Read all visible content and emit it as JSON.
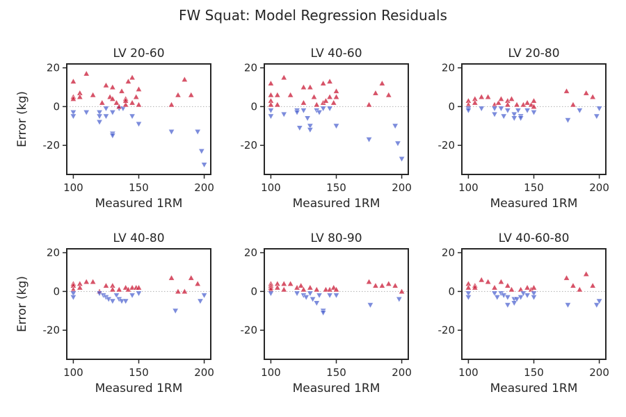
{
  "chart_data": {
    "type": "scatter",
    "suptitle": "FW Squat: Model Regression Residuals",
    "xlabel": "Measured 1RM",
    "ylabel": "Error (kg)",
    "xlim": [
      95,
      205
    ],
    "ylim": [
      -35,
      22
    ],
    "xticks": [
      100,
      150,
      200
    ],
    "yticks": [
      20,
      0,
      -20
    ],
    "zero_line": true,
    "marker_colors": {
      "positive": "#c8102e",
      "negative": "#4a5fcf"
    },
    "markers": {
      "positive": "triangle-up",
      "negative": "triangle-down"
    },
    "panels": [
      {
        "title": "LV 20-60",
        "points": [
          [
            100,
            13
          ],
          [
            100,
            5
          ],
          [
            100,
            4
          ],
          [
            100,
            -3
          ],
          [
            100,
            -5
          ],
          [
            105,
            7
          ],
          [
            105,
            5
          ],
          [
            110,
            17
          ],
          [
            110,
            -3
          ],
          [
            115,
            6
          ],
          [
            120,
            -3
          ],
          [
            120,
            -5
          ],
          [
            120,
            -8
          ],
          [
            122,
            2
          ],
          [
            125,
            11
          ],
          [
            125,
            -1
          ],
          [
            125,
            -5
          ],
          [
            128,
            5
          ],
          [
            130,
            10
          ],
          [
            130,
            4
          ],
          [
            130,
            -3
          ],
          [
            130,
            -14
          ],
          [
            130,
            -15
          ],
          [
            133,
            2
          ],
          [
            135,
            -1
          ],
          [
            135,
            0
          ],
          [
            137,
            8
          ],
          [
            138,
            -1
          ],
          [
            140,
            4
          ],
          [
            140,
            1
          ],
          [
            140,
            3
          ],
          [
            142,
            13
          ],
          [
            145,
            15
          ],
          [
            145,
            2
          ],
          [
            145,
            -5
          ],
          [
            148,
            5
          ],
          [
            150,
            9
          ],
          [
            150,
            1
          ],
          [
            150,
            -9
          ],
          [
            175,
            1
          ],
          [
            175,
            -13
          ],
          [
            180,
            6
          ],
          [
            185,
            14
          ],
          [
            190,
            6
          ],
          [
            195,
            -13
          ],
          [
            198,
            -23
          ],
          [
            200,
            -30
          ]
        ]
      },
      {
        "title": "LV 40-60",
        "points": [
          [
            100,
            12
          ],
          [
            100,
            6
          ],
          [
            100,
            3
          ],
          [
            100,
            1
          ],
          [
            100,
            -2
          ],
          [
            100,
            -5
          ],
          [
            105,
            6
          ],
          [
            105,
            1
          ],
          [
            110,
            15
          ],
          [
            110,
            -4
          ],
          [
            115,
            6
          ],
          [
            120,
            -2
          ],
          [
            120,
            -3
          ],
          [
            122,
            -11
          ],
          [
            125,
            10
          ],
          [
            125,
            2
          ],
          [
            125,
            -2
          ],
          [
            128,
            -6
          ],
          [
            130,
            10
          ],
          [
            130,
            -10
          ],
          [
            130,
            -12
          ],
          [
            133,
            5
          ],
          [
            135,
            1
          ],
          [
            135,
            -2
          ],
          [
            137,
            -3
          ],
          [
            140,
            12
          ],
          [
            140,
            2
          ],
          [
            140,
            -1
          ],
          [
            142,
            3
          ],
          [
            145,
            13
          ],
          [
            145,
            5
          ],
          [
            145,
            -1
          ],
          [
            148,
            2
          ],
          [
            150,
            8
          ],
          [
            150,
            5
          ],
          [
            150,
            -10
          ],
          [
            175,
            1
          ],
          [
            175,
            -17
          ],
          [
            180,
            7
          ],
          [
            185,
            12
          ],
          [
            190,
            6
          ],
          [
            195,
            -10
          ],
          [
            197,
            -19
          ],
          [
            200,
            -27
          ]
        ]
      },
      {
        "title": "LV 20-80",
        "points": [
          [
            100,
            3
          ],
          [
            100,
            1
          ],
          [
            100,
            -1
          ],
          [
            100,
            -2
          ],
          [
            105,
            4
          ],
          [
            105,
            2
          ],
          [
            110,
            5
          ],
          [
            110,
            -1
          ],
          [
            115,
            5
          ],
          [
            120,
            1
          ],
          [
            120,
            -1
          ],
          [
            120,
            -4
          ],
          [
            123,
            2
          ],
          [
            125,
            4
          ],
          [
            125,
            -1
          ],
          [
            127,
            -5
          ],
          [
            130,
            3
          ],
          [
            130,
            1
          ],
          [
            130,
            -2
          ],
          [
            133,
            4
          ],
          [
            135,
            -4
          ],
          [
            135,
            -6
          ],
          [
            137,
            1
          ],
          [
            138,
            -2
          ],
          [
            140,
            -5
          ],
          [
            140,
            -6
          ],
          [
            142,
            1
          ],
          [
            145,
            2
          ],
          [
            145,
            -2
          ],
          [
            148,
            1
          ],
          [
            150,
            3
          ],
          [
            150,
            0
          ],
          [
            150,
            -3
          ],
          [
            175,
            8
          ],
          [
            176,
            -7
          ],
          [
            180,
            1
          ],
          [
            185,
            -2
          ],
          [
            190,
            7
          ],
          [
            195,
            5
          ],
          [
            198,
            -5
          ],
          [
            200,
            -1
          ]
        ]
      },
      {
        "title": "LV 40-80",
        "points": [
          [
            100,
            4
          ],
          [
            100,
            3
          ],
          [
            100,
            1
          ],
          [
            100,
            -1
          ],
          [
            100,
            -3
          ],
          [
            105,
            4
          ],
          [
            105,
            2
          ],
          [
            110,
            5
          ],
          [
            115,
            5
          ],
          [
            120,
            0
          ],
          [
            120,
            -1
          ],
          [
            123,
            -2
          ],
          [
            125,
            3
          ],
          [
            125,
            -3
          ],
          [
            127,
            -4
          ],
          [
            130,
            3
          ],
          [
            130,
            1
          ],
          [
            130,
            -5
          ],
          [
            133,
            -2
          ],
          [
            135,
            -4
          ],
          [
            135,
            1
          ],
          [
            137,
            -5
          ],
          [
            140,
            2
          ],
          [
            140,
            -5
          ],
          [
            142,
            1
          ],
          [
            145,
            2
          ],
          [
            145,
            -2
          ],
          [
            148,
            2
          ],
          [
            150,
            2
          ],
          [
            150,
            -1
          ],
          [
            175,
            7
          ],
          [
            178,
            -10
          ],
          [
            180,
            0
          ],
          [
            185,
            0
          ],
          [
            190,
            7
          ],
          [
            195,
            4
          ],
          [
            197,
            -5
          ],
          [
            200,
            -2
          ]
        ]
      },
      {
        "title": "LV 80-90",
        "points": [
          [
            100,
            4
          ],
          [
            100,
            3
          ],
          [
            100,
            2
          ],
          [
            100,
            1
          ],
          [
            100,
            -1
          ],
          [
            105,
            4
          ],
          [
            105,
            2
          ],
          [
            110,
            4
          ],
          [
            110,
            1
          ],
          [
            115,
            4
          ],
          [
            120,
            2
          ],
          [
            120,
            -1
          ],
          [
            123,
            3
          ],
          [
            125,
            1
          ],
          [
            125,
            -2
          ],
          [
            127,
            -3
          ],
          [
            130,
            2
          ],
          [
            130,
            -1
          ],
          [
            132,
            -4
          ],
          [
            135,
            1
          ],
          [
            135,
            -6
          ],
          [
            137,
            -2
          ],
          [
            140,
            -10
          ],
          [
            140,
            -11
          ],
          [
            142,
            1
          ],
          [
            145,
            1
          ],
          [
            145,
            -2
          ],
          [
            148,
            2
          ],
          [
            150,
            1
          ],
          [
            150,
            -2
          ],
          [
            175,
            5
          ],
          [
            176,
            -7
          ],
          [
            180,
            3
          ],
          [
            185,
            3
          ],
          [
            190,
            4
          ],
          [
            195,
            3
          ],
          [
            198,
            -4
          ],
          [
            200,
            0
          ]
        ]
      },
      {
        "title": "LV 40-60-80",
        "points": [
          [
            100,
            4
          ],
          [
            100,
            2
          ],
          [
            100,
            -1
          ],
          [
            100,
            -3
          ],
          [
            105,
            3
          ],
          [
            105,
            2
          ],
          [
            110,
            6
          ],
          [
            115,
            5
          ],
          [
            120,
            2
          ],
          [
            120,
            -1
          ],
          [
            122,
            -3
          ],
          [
            125,
            5
          ],
          [
            125,
            -1
          ],
          [
            127,
            -2
          ],
          [
            130,
            3
          ],
          [
            130,
            -3
          ],
          [
            130,
            -7
          ],
          [
            133,
            1
          ],
          [
            135,
            -4
          ],
          [
            135,
            -6
          ],
          [
            137,
            -4
          ],
          [
            140,
            1
          ],
          [
            140,
            -3
          ],
          [
            142,
            -1
          ],
          [
            145,
            2
          ],
          [
            145,
            -2
          ],
          [
            148,
            1
          ],
          [
            150,
            2
          ],
          [
            150,
            -1
          ],
          [
            150,
            -3
          ],
          [
            175,
            7
          ],
          [
            176,
            -7
          ],
          [
            180,
            3
          ],
          [
            185,
            1
          ],
          [
            190,
            9
          ],
          [
            195,
            3
          ],
          [
            198,
            -7
          ],
          [
            200,
            -5
          ]
        ]
      }
    ]
  }
}
